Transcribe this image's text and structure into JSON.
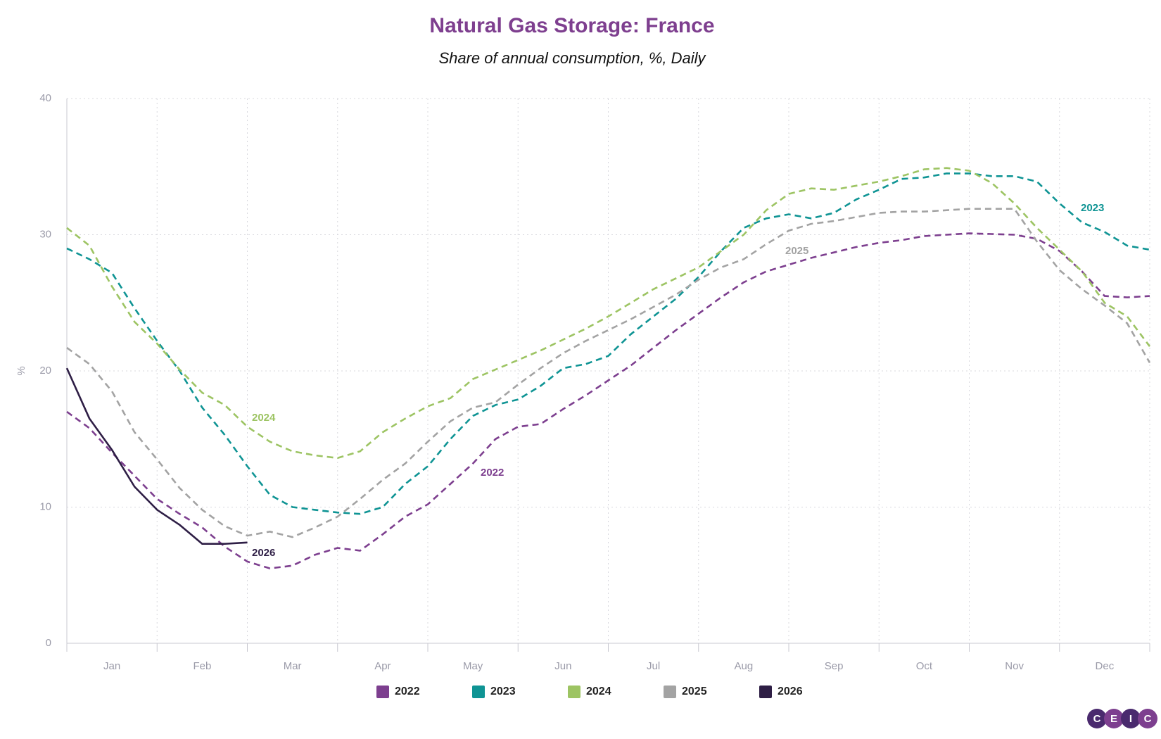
{
  "chart_data": {
    "type": "line",
    "title": "Natural Gas Storage: France",
    "subtitle": "Share of annual consumption, %, Daily",
    "y_label": "%",
    "categories": [
      null,
      null,
      "Jan",
      null,
      null,
      null,
      "Feb",
      null,
      null,
      null,
      "Mar",
      null,
      null,
      null,
      "Apr",
      null,
      null,
      null,
      "May",
      null,
      null,
      null,
      "Jun",
      null,
      null,
      null,
      "Jul",
      null,
      null,
      null,
      "Aug",
      null,
      null,
      null,
      "Sep",
      null,
      null,
      null,
      "Oct",
      null,
      null,
      null,
      "Nov",
      null,
      null,
      null,
      "Dec",
      null,
      null
    ],
    "ylim": [
      0,
      40
    ],
    "yticks": [
      0,
      10,
      20,
      30,
      40
    ],
    "grid": true,
    "series": [
      {
        "name": "2022",
        "color": "#7d3f8f",
        "line_style": "dashed",
        "values": [
          17,
          15.8,
          14,
          12.3,
          10.6,
          9.5,
          8.5,
          7.1,
          6.0,
          5.5,
          5.7,
          6.5,
          7,
          6.8,
          8,
          9.3,
          10.2,
          11.7,
          13.2,
          15,
          15.9,
          16.1,
          17.2,
          18.2,
          19.3,
          20.4,
          21.7,
          23,
          24.2,
          25.4,
          26.5,
          27.3,
          27.8,
          28.3,
          28.7,
          29.1,
          29.4,
          29.6,
          29.9,
          30.0,
          30.1,
          30.05,
          30.0,
          29.7,
          28.8,
          27.3,
          25.5,
          25.4,
          25.5
        ]
      },
      {
        "name": "2023",
        "color": "#0f9494",
        "line_style": "dashed",
        "values": [
          29,
          28.2,
          27.2,
          24.6,
          22.2,
          20,
          17.3,
          15.3,
          13.0,
          10.9,
          10.0,
          9.8,
          9.6,
          9.5,
          10.0,
          11.7,
          13.0,
          15.0,
          16.7,
          17.5,
          17.9,
          18.9,
          20.2,
          20.5,
          21.1,
          22.7,
          24.0,
          25.3,
          26.9,
          28.8,
          30.5,
          31.2,
          31.5,
          31.2,
          31.6,
          32.6,
          33.3,
          34.1,
          34.2,
          34.5,
          34.5,
          34.3,
          34.3,
          33.9,
          32.3,
          30.9,
          30.2,
          29.2,
          28.9
        ]
      },
      {
        "name": "2024",
        "color": "#9dc463",
        "line_style": "dashed",
        "values": [
          30.5,
          29.2,
          26.2,
          23.6,
          22.0,
          20.1,
          18.4,
          17.5,
          15.9,
          14.8,
          14.1,
          13.8,
          13.6,
          14.1,
          15.5,
          16.5,
          17.4,
          18.0,
          19.4,
          20.1,
          20.8,
          21.5,
          22.3,
          23.1,
          24.0,
          25.0,
          26.0,
          26.8,
          27.6,
          28.8,
          30.0,
          31.8,
          33.0,
          33.4,
          33.3,
          33.6,
          33.9,
          34.3,
          34.8,
          34.9,
          34.7,
          33.8,
          32.3,
          30.5,
          28.9,
          27.3,
          25.0,
          24.0,
          21.8
        ]
      },
      {
        "name": "2025",
        "color": "#a3a3a3",
        "line_style": "dashed",
        "values": [
          21.7,
          20.5,
          18.5,
          15.5,
          13.5,
          11.4,
          9.8,
          8.6,
          7.9,
          8.2,
          7.8,
          8.5,
          9.3,
          10.6,
          12.0,
          13.2,
          14.8,
          16.3,
          17.3,
          17.7,
          19.0,
          20.2,
          21.3,
          22.2,
          23.0,
          23.8,
          24.7,
          25.6,
          26.7,
          27.6,
          28.2,
          29.3,
          30.3,
          30.8,
          31.0,
          31.3,
          31.6,
          31.7,
          31.7,
          31.8,
          31.9,
          31.9,
          31.9,
          29.5,
          27.4,
          26.0,
          24.8,
          23.5,
          20.6
        ]
      },
      {
        "name": "2026",
        "color": "#2e1e45",
        "line_style": "solid",
        "values": [
          20.2,
          16.5,
          14.2,
          11.5,
          9.8,
          8.7,
          7.3,
          7.3,
          7.4,
          null,
          null,
          null,
          null,
          null,
          null,
          null,
          null,
          null,
          null,
          null,
          null,
          null,
          null,
          null,
          null,
          null,
          null,
          null,
          null,
          null,
          null,
          null,
          null,
          null,
          null,
          null,
          null,
          null,
          null,
          null,
          null,
          null,
          null,
          null,
          null,
          null,
          null,
          null,
          null
        ]
      }
    ],
    "annotations": [
      "2024",
      "2022",
      "2023",
      "2025",
      "2026"
    ]
  },
  "logo": [
    "C",
    "E",
    "I",
    "C"
  ]
}
